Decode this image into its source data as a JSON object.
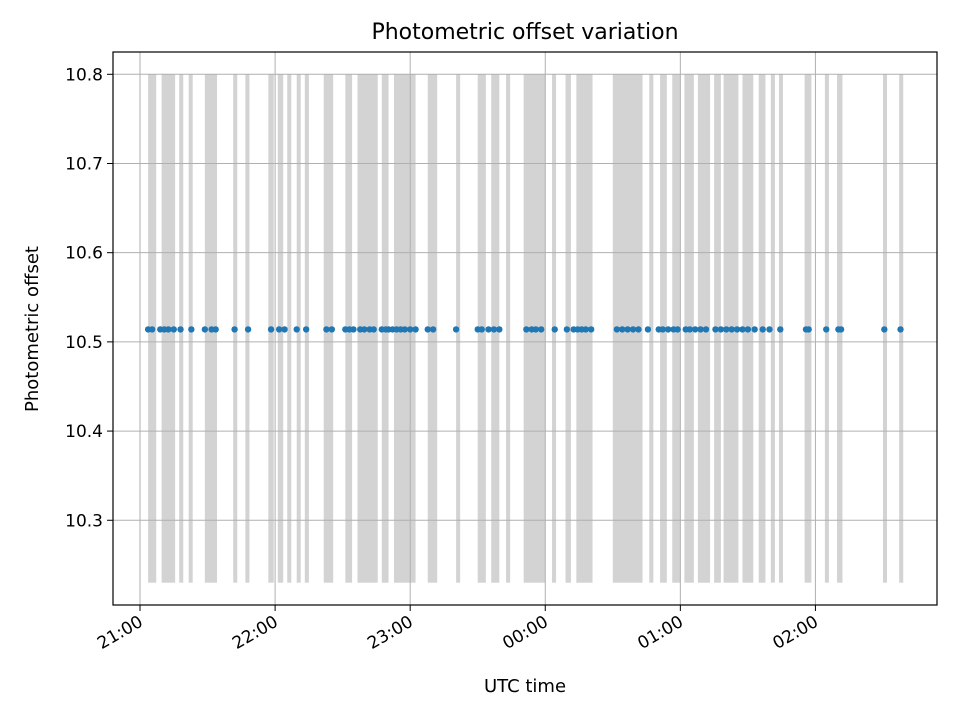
{
  "chart_data": {
    "type": "scatter",
    "title": "Photometric offset variation",
    "xlabel": "UTC time",
    "ylabel": "Photometric offset",
    "x_unit": "hours since 21:00 UTC",
    "xlim": [
      -0.2,
      5.9
    ],
    "ylim": [
      10.205,
      10.825
    ],
    "grid": true,
    "x_ticks": [
      {
        "value": 0,
        "label": "21:00"
      },
      {
        "value": 1,
        "label": "22:00"
      },
      {
        "value": 2,
        "label": "23:00"
      },
      {
        "value": 3,
        "label": "00:00"
      },
      {
        "value": 4,
        "label": "01:00"
      },
      {
        "value": 5,
        "label": "02:00"
      }
    ],
    "y_ticks": [
      {
        "value": 10.3,
        "label": "10.3"
      },
      {
        "value": 10.4,
        "label": "10.4"
      },
      {
        "value": 10.5,
        "label": "10.5"
      },
      {
        "value": 10.6,
        "label": "10.6"
      },
      {
        "value": 10.7,
        "label": "10.7"
      },
      {
        "value": 10.8,
        "label": "10.8"
      }
    ],
    "band_color": "#d3d3d3",
    "band_range": [
      10.23,
      10.8
    ],
    "band_groups": [
      [
        0.06,
        0.12
      ],
      [
        0.16,
        0.26
      ],
      [
        0.29,
        0.32
      ],
      [
        0.36,
        0.39
      ],
      [
        0.48,
        0.57
      ],
      [
        0.69,
        0.72
      ],
      [
        0.78,
        0.81
      ],
      [
        0.95,
        0.99
      ],
      [
        1.02,
        1.06
      ],
      [
        1.09,
        1.12
      ],
      [
        1.16,
        1.19
      ],
      [
        1.22,
        1.25
      ],
      [
        1.36,
        1.43
      ],
      [
        1.52,
        1.57
      ],
      [
        1.61,
        1.76
      ],
      [
        1.79,
        1.84
      ],
      [
        1.88,
        2.04
      ],
      [
        2.13,
        2.2
      ],
      [
        2.34,
        2.37
      ],
      [
        2.5,
        2.56
      ],
      [
        2.6,
        2.66
      ],
      [
        2.71,
        2.74
      ],
      [
        2.84,
        3.0
      ],
      [
        3.05,
        3.08
      ],
      [
        3.15,
        3.19
      ],
      [
        3.23,
        3.35
      ],
      [
        3.5,
        3.72
      ],
      [
        3.77,
        3.8
      ],
      [
        3.85,
        3.9
      ],
      [
        3.94,
        4.0
      ],
      [
        4.03,
        4.1
      ],
      [
        4.13,
        4.22
      ],
      [
        4.25,
        4.3
      ],
      [
        4.32,
        4.43
      ],
      [
        4.46,
        4.54
      ],
      [
        4.58,
        4.63
      ],
      [
        4.67,
        4.7
      ],
      [
        4.73,
        4.76
      ],
      [
        4.92,
        4.97
      ],
      [
        5.07,
        5.1
      ],
      [
        5.16,
        5.2
      ],
      [
        5.5,
        5.53
      ],
      [
        5.62,
        5.65
      ]
    ],
    "series": [
      {
        "color": "#1f77b4",
        "y": 10.514,
        "x": [
          0.06,
          0.09,
          0.15,
          0.18,
          0.21,
          0.25,
          0.3,
          0.38,
          0.48,
          0.53,
          0.56,
          0.7,
          0.8,
          0.97,
          1.03,
          1.07,
          1.16,
          1.23,
          1.38,
          1.42,
          1.52,
          1.55,
          1.58,
          1.63,
          1.66,
          1.7,
          1.73,
          1.79,
          1.82,
          1.84,
          1.87,
          1.9,
          1.93,
          1.96,
          2.0,
          2.04,
          2.13,
          2.17,
          2.34,
          2.5,
          2.53,
          2.58,
          2.62,
          2.66,
          2.86,
          2.9,
          2.93,
          2.97,
          3.07,
          3.16,
          3.21,
          3.24,
          3.27,
          3.3,
          3.34,
          3.53,
          3.57,
          3.61,
          3.65,
          3.69,
          3.76,
          3.84,
          3.87,
          3.91,
          3.95,
          3.98,
          4.04,
          4.07,
          4.11,
          4.15,
          4.19,
          4.26,
          4.3,
          4.34,
          4.38,
          4.42,
          4.46,
          4.5,
          4.55,
          4.61,
          4.66,
          4.74,
          4.93,
          4.95,
          5.08,
          5.17,
          5.19,
          5.51,
          5.63
        ]
      }
    ]
  }
}
